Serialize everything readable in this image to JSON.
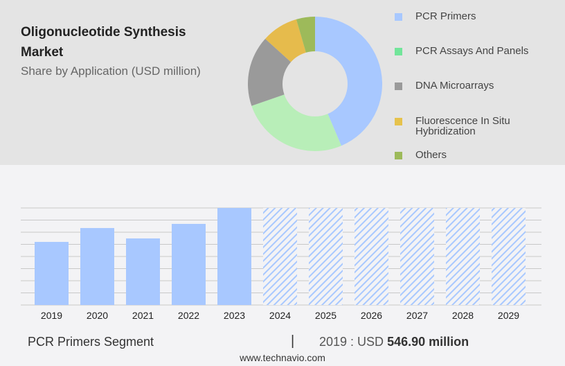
{
  "header": {
    "title": "Oligonucleotide Synthesis Market",
    "subtitle": "Share by Application (USD million)"
  },
  "chart_data": [
    {
      "type": "pie",
      "variant": "donut",
      "legend_placement": "right",
      "slices": [
        {
          "label": "PCR Primers",
          "share": 43.6,
          "color": "#a8c8ff",
          "legend_color": "#a8c8ff"
        },
        {
          "label": "PCR Assays And Panels",
          "share": 26.1,
          "color": "#b8eeb8",
          "legend_color": "#72e59a"
        },
        {
          "label": "DNA Microarrays",
          "share": 17.0,
          "color": "#9a9a9a",
          "legend_color": "#9a9a9a"
        },
        {
          "label": "Fluorescence In Situ Hybridization",
          "share": 8.8,
          "color": "#e6bb4c",
          "legend_color": "#e6c24c"
        },
        {
          "label": "Others",
          "share": 4.5,
          "color": "#9dba5a",
          "legend_color": "#9dba5a"
        }
      ]
    },
    {
      "type": "bar",
      "grid": true,
      "color": "#a8c8ff",
      "categories": [
        "2019",
        "2020",
        "2021",
        "2022",
        "2023",
        "2024",
        "2025",
        "2026",
        "2027",
        "2028",
        "2029"
      ],
      "values": [
        546.9,
        667,
        577,
        703,
        841,
        null,
        null,
        null,
        null,
        null,
        null
      ],
      "forecast": [
        false,
        false,
        false,
        false,
        false,
        true,
        true,
        true,
        true,
        true,
        true
      ],
      "ylim": [
        0,
        841
      ]
    }
  ],
  "footer": {
    "segment": "PCR Primers Segment",
    "separator": "|",
    "year_prefix": "2019 : USD",
    "value": "546.90 million",
    "site": "www.technavio.com"
  }
}
